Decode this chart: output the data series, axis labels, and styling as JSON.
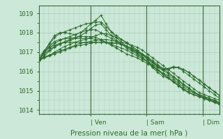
{
  "title": "",
  "xlabel": "Pression niveau de la mer( hPa )",
  "ylabel": "",
  "bg_color": "#cce8d8",
  "plot_bg_color": "#cce8d8",
  "grid_color": "#aac8b8",
  "line_color": "#2d6e2d",
  "marker_color": "#2d6e2d",
  "tick_label_color": "#2d6e2d",
  "ylim": [
    1013.8,
    1019.4
  ],
  "yticks": [
    1014,
    1015,
    1016,
    1017,
    1018,
    1019
  ],
  "day_labels": [
    "| Ven",
    "| Sam",
    "| Dim"
  ],
  "day_positions": [
    0.285,
    0.595,
    0.905
  ],
  "vline_positions": [
    0.285,
    0.595,
    0.905
  ],
  "series": [
    [
      1016.6,
      1016.75,
      1016.85,
      1016.95,
      1017.05,
      1017.15,
      1017.25,
      1017.35,
      1017.45,
      1017.5,
      1017.55,
      1017.6,
      1017.65,
      1017.65,
      1017.6,
      1017.55,
      1017.5,
      1017.45,
      1017.35,
      1017.25,
      1017.1,
      1016.9,
      1016.7,
      1016.5,
      1016.3,
      1016.1,
      1015.9,
      1015.7,
      1015.5,
      1015.3,
      1015.1,
      1014.9,
      1014.8,
      1014.7,
      1014.6,
      1014.5
    ],
    [
      1016.6,
      1016.9,
      1017.1,
      1017.3,
      1017.4,
      1017.5,
      1017.6,
      1017.7,
      1017.7,
      1017.7,
      1017.7,
      1017.65,
      1017.6,
      1017.5,
      1017.4,
      1017.3,
      1017.2,
      1017.1,
      1016.95,
      1016.8,
      1016.65,
      1016.5,
      1016.35,
      1016.2,
      1016.05,
      1015.9,
      1015.7,
      1015.5,
      1015.3,
      1015.1,
      1014.9,
      1014.75,
      1014.65,
      1014.55,
      1014.45,
      1014.35
    ],
    [
      1016.6,
      1016.95,
      1017.2,
      1017.45,
      1017.6,
      1017.7,
      1017.8,
      1017.9,
      1018.0,
      1018.1,
      1018.15,
      1018.15,
      1018.0,
      1017.85,
      1017.7,
      1017.55,
      1017.4,
      1017.3,
      1017.2,
      1017.05,
      1016.9,
      1016.75,
      1016.55,
      1016.35,
      1016.15,
      1015.95,
      1015.75,
      1015.55,
      1015.35,
      1015.15,
      1014.95,
      1014.8,
      1014.7,
      1014.6,
      1014.5,
      1014.4
    ],
    [
      1016.6,
      1017.0,
      1017.3,
      1017.55,
      1017.65,
      1017.7,
      1017.7,
      1017.75,
      1017.85,
      1018.0,
      1018.2,
      1018.4,
      1018.45,
      1018.15,
      1017.85,
      1017.6,
      1017.4,
      1017.2,
      1017.05,
      1016.9,
      1016.7,
      1016.5,
      1016.25,
      1016.05,
      1015.85,
      1015.65,
      1015.45,
      1015.25,
      1015.05,
      1014.9,
      1014.8,
      1014.7,
      1014.6,
      1014.5,
      1014.4,
      1014.3
    ],
    [
      1016.6,
      1017.05,
      1017.45,
      1017.85,
      1018.0,
      1018.0,
      1017.95,
      1017.9,
      1018.0,
      1018.2,
      1018.45,
      1018.65,
      1018.9,
      1018.45,
      1018.05,
      1017.75,
      1017.5,
      1017.3,
      1017.1,
      1016.95,
      1016.75,
      1016.5,
      1016.2,
      1015.95,
      1015.75,
      1015.65,
      1015.5,
      1015.3,
      1015.1,
      1014.9,
      1014.8,
      1014.7,
      1014.6,
      1014.5,
      1014.4,
      1014.3
    ],
    [
      1016.55,
      1017.0,
      1017.4,
      1017.75,
      1017.95,
      1018.05,
      1018.15,
      1018.25,
      1018.35,
      1018.45,
      1018.5,
      1018.55,
      1018.55,
      1018.3,
      1018.05,
      1017.85,
      1017.65,
      1017.45,
      1017.3,
      1017.1,
      1016.9,
      1016.6,
      1016.3,
      1016.1,
      1015.9,
      1015.8,
      1015.6,
      1015.4,
      1015.2,
      1015.0,
      1014.9,
      1014.8,
      1014.7,
      1014.6,
      1014.5,
      1014.4
    ],
    [
      1016.55,
      1016.8,
      1017.05,
      1017.25,
      1017.4,
      1017.55,
      1017.65,
      1017.75,
      1017.8,
      1017.8,
      1017.8,
      1017.75,
      1017.65,
      1017.5,
      1017.35,
      1017.2,
      1017.05,
      1016.9,
      1016.8,
      1016.7,
      1016.55,
      1016.4,
      1016.25,
      1016.1,
      1015.9,
      1015.7,
      1015.5,
      1015.3,
      1015.1,
      1014.9,
      1014.8,
      1014.7,
      1014.6,
      1014.5,
      1014.4,
      1014.3
    ],
    [
      1016.55,
      1016.7,
      1016.8,
      1017.0,
      1017.15,
      1017.3,
      1017.4,
      1017.5,
      1017.6,
      1017.65,
      1017.75,
      1017.85,
      1017.95,
      1017.95,
      1017.85,
      1017.75,
      1017.65,
      1017.5,
      1017.3,
      1017.1,
      1016.9,
      1016.7,
      1016.5,
      1016.3,
      1016.15,
      1016.15,
      1016.25,
      1016.2,
      1016.0,
      1015.8,
      1015.6,
      1015.4,
      1015.2,
      1015.0,
      1014.8,
      1014.6
    ],
    [
      1016.55,
      1016.7,
      1016.8,
      1016.9,
      1017.0,
      1017.1,
      1017.2,
      1017.3,
      1017.35,
      1017.4,
      1017.45,
      1017.5,
      1017.5,
      1017.5,
      1017.45,
      1017.45,
      1017.4,
      1017.3,
      1017.15,
      1017.0,
      1016.85,
      1016.65,
      1016.45,
      1016.25,
      1016.1,
      1016.1,
      1016.2,
      1016.2,
      1016.1,
      1015.95,
      1015.75,
      1015.55,
      1015.35,
      1015.15,
      1014.95,
      1014.75
    ],
    [
      1016.75,
      1017.05,
      1017.25,
      1017.35,
      1017.45,
      1017.5,
      1017.5,
      1017.5,
      1017.5,
      1017.5,
      1017.5,
      1017.5,
      1017.5,
      1017.5,
      1017.5,
      1017.45,
      1017.4,
      1017.3,
      1017.15,
      1017.0,
      1016.85,
      1016.65,
      1016.45,
      1016.25,
      1016.1,
      1016.1,
      1016.2,
      1016.2,
      1016.1,
      1015.95,
      1015.75,
      1015.55,
      1015.35,
      1015.15,
      1014.95,
      1014.75
    ]
  ]
}
